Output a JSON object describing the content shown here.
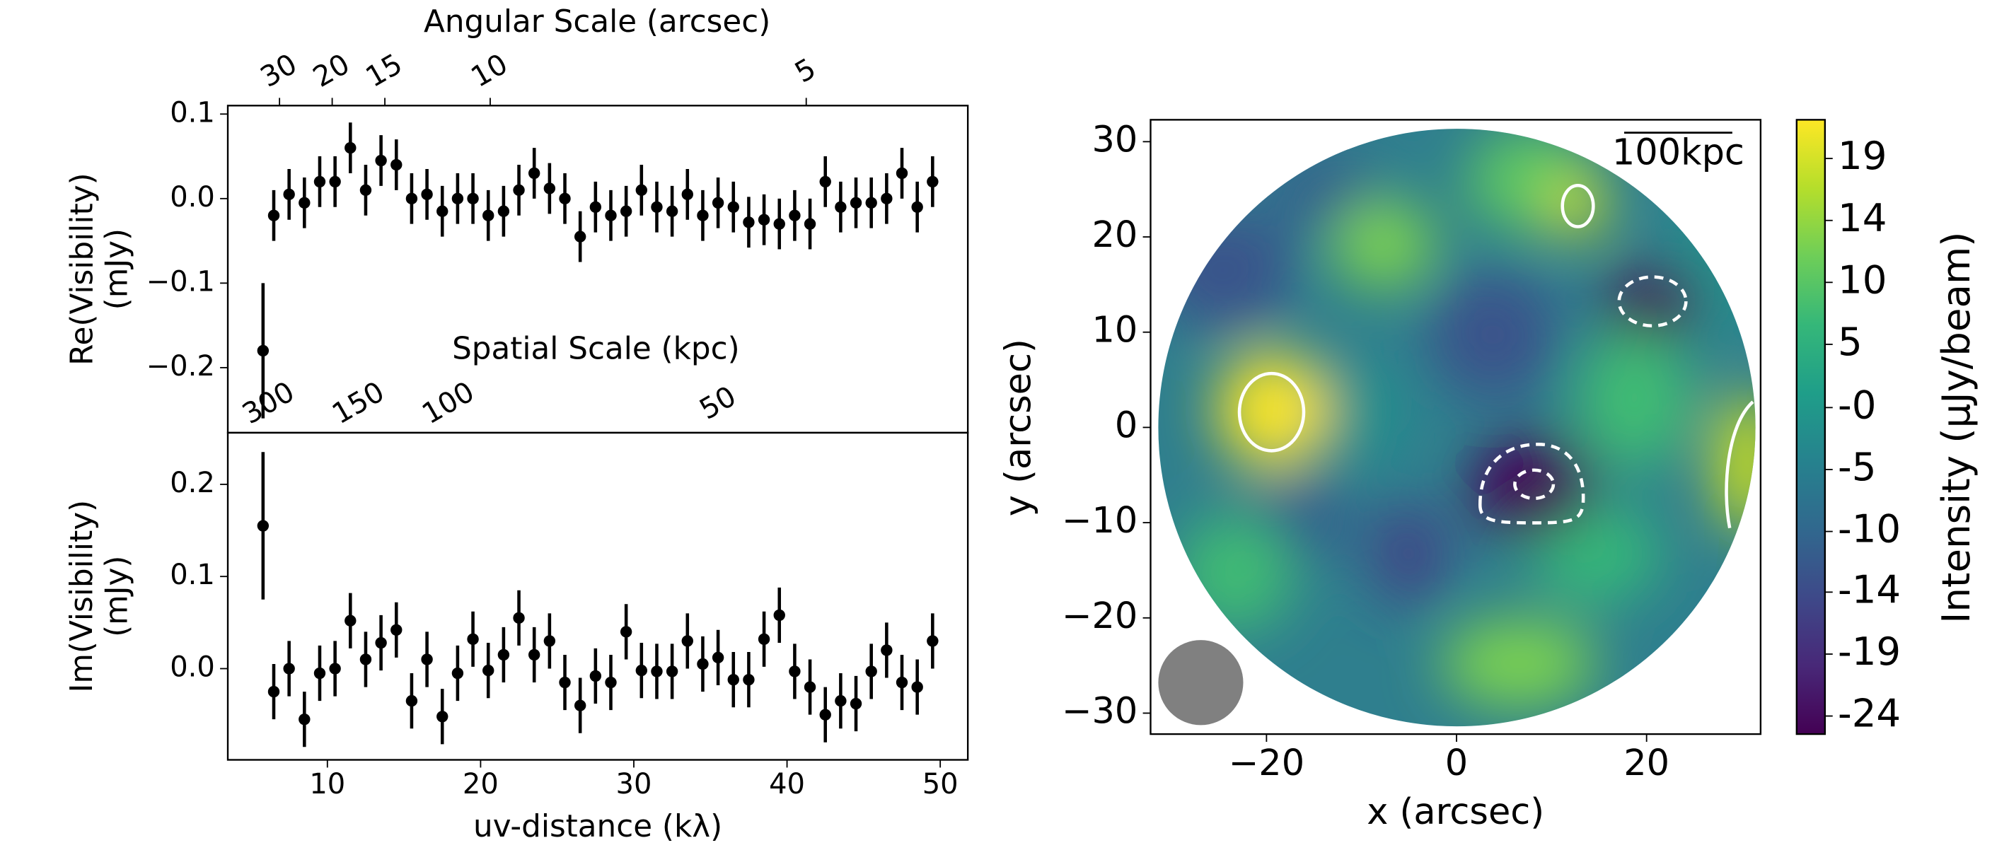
{
  "chart_data": [
    {
      "type": "errorbar",
      "x2label": "Angular Scale (arcsec)",
      "x3label": "Spatial Scale (kpc)",
      "ylabel": [
        "Re(Visibility)",
        "(mJy)"
      ],
      "color": "#000000",
      "x": [
        5.8,
        6.5,
        7.5,
        8.5,
        9.5,
        10.5,
        11.5,
        12.5,
        13.5,
        14.5,
        15.5,
        16.5,
        17.5,
        18.5,
        19.5,
        20.5,
        21.5,
        22.5,
        23.5,
        24.5,
        25.5,
        26.5,
        27.5,
        28.5,
        29.5,
        30.5,
        31.5,
        32.5,
        33.5,
        34.5,
        35.5,
        36.5,
        37.5,
        38.5,
        39.5,
        40.5,
        41.5,
        42.5,
        43.5,
        44.5,
        45.5,
        46.5,
        47.5,
        48.5,
        49.5
      ],
      "values": [
        -0.18,
        -0.02,
        0.005,
        -0.005,
        0.02,
        0.02,
        0.06,
        0.01,
        0.045,
        0.04,
        0.0,
        0.005,
        -0.015,
        0.0,
        0.0,
        -0.02,
        -0.015,
        0.01,
        0.03,
        0.012,
        0.0,
        -0.045,
        -0.01,
        -0.02,
        -0.015,
        0.01,
        -0.01,
        -0.015,
        0.005,
        -0.02,
        -0.005,
        -0.01,
        -0.028,
        -0.025,
        -0.03,
        -0.02,
        -0.03,
        0.02,
        -0.01,
        -0.005,
        -0.005,
        0.0,
        0.03,
        -0.01,
        0.02
      ],
      "errors": [
        0.08,
        0.03,
        0.03,
        0.03,
        0.03,
        0.03,
        0.03,
        0.03,
        0.03,
        0.03,
        0.03,
        0.03,
        0.03,
        0.03,
        0.03,
        0.03,
        0.03,
        0.03,
        0.03,
        0.03,
        0.03,
        0.03,
        0.03,
        0.03,
        0.03,
        0.03,
        0.03,
        0.03,
        0.03,
        0.03,
        0.03,
        0.03,
        0.03,
        0.03,
        0.03,
        0.03,
        0.03,
        0.03,
        0.03,
        0.03,
        0.03,
        0.03,
        0.03,
        0.03,
        0.03
      ],
      "xlim": [
        3.5,
        51.8
      ],
      "ylim": [
        -0.277,
        0.11
      ],
      "yticks": [
        {
          "value": -0.2,
          "label": "−0.2"
        },
        {
          "value": -0.1,
          "label": "−0.1"
        },
        {
          "value": 0,
          "label": "0.0"
        },
        0.1
      ],
      "x2ticks": [
        30,
        20,
        15,
        10,
        5
      ],
      "x3ticks": [
        300,
        150,
        100,
        50
      ]
    },
    {
      "type": "errorbar",
      "xlabel": "uv-distance (kλ)",
      "ylabel": [
        "Im(Visibility)",
        "(mJy)"
      ],
      "color": "#000000",
      "x": [
        5.8,
        6.5,
        7.5,
        8.5,
        9.5,
        10.5,
        11.5,
        12.5,
        13.5,
        14.5,
        15.5,
        16.5,
        17.5,
        18.5,
        19.5,
        20.5,
        21.5,
        22.5,
        23.5,
        24.5,
        25.5,
        26.5,
        27.5,
        28.5,
        29.5,
        30.5,
        31.5,
        32.5,
        33.5,
        34.5,
        35.5,
        36.5,
        37.5,
        38.5,
        39.5,
        40.5,
        41.5,
        42.5,
        43.5,
        44.5,
        45.5,
        46.5,
        47.5,
        48.5,
        49.5
      ],
      "values": [
        0.155,
        -0.025,
        0.0,
        -0.055,
        -0.005,
        0.0,
        0.052,
        0.01,
        0.028,
        0.042,
        -0.035,
        0.01,
        -0.052,
        -0.005,
        0.032,
        -0.002,
        0.015,
        0.055,
        0.015,
        0.03,
        -0.015,
        -0.04,
        -0.008,
        -0.015,
        0.04,
        -0.002,
        -0.003,
        -0.003,
        0.03,
        0.005,
        0.012,
        -0.012,
        -0.012,
        0.032,
        0.058,
        -0.003,
        -0.02,
        -0.05,
        -0.035,
        -0.038,
        -0.003,
        0.02,
        -0.015,
        -0.02,
        0.03
      ],
      "errors": [
        0.08,
        0.03,
        0.03,
        0.03,
        0.03,
        0.03,
        0.03,
        0.03,
        0.03,
        0.03,
        0.03,
        0.03,
        0.03,
        0.03,
        0.03,
        0.03,
        0.03,
        0.03,
        0.03,
        0.03,
        0.03,
        0.03,
        0.03,
        0.03,
        0.03,
        0.03,
        0.03,
        0.03,
        0.03,
        0.03,
        0.03,
        0.03,
        0.03,
        0.03,
        0.03,
        0.03,
        0.03,
        0.03,
        0.03,
        0.03,
        0.03,
        0.03,
        0.03,
        0.03,
        0.03
      ],
      "xlim": [
        3.5,
        51.8
      ],
      "ylim": [
        -0.099,
        0.256
      ],
      "xticks": [
        10,
        20,
        30,
        40,
        50
      ],
      "yticks": [
        {
          "value": 0,
          "label": "0.0"
        },
        0.1,
        0.2
      ]
    },
    {
      "type": "image",
      "xlabel": "x (arcsec)",
      "ylabel": "y (arcsec)",
      "annotation": "100kpc",
      "colormap": "viridis",
      "xlim": [
        -32.2,
        32
      ],
      "ylim": [
        -32.2,
        32.3
      ],
      "xticks": [
        {
          "value": -20,
          "label": "−20"
        },
        0,
        20
      ],
      "yticks": [
        {
          "value": -30,
          "label": "−30"
        },
        {
          "value": -20,
          "label": "−20"
        },
        {
          "value": -10,
          "label": "−10"
        },
        0,
        10,
        20,
        30
      ],
      "clabel": "Intensity (μJy/beam)",
      "clim": [
        -25.4,
        22.2
      ],
      "cticks": [
        {
          "value": 19.2,
          "label": "19"
        },
        {
          "value": 14.4,
          "label": "14"
        },
        {
          "value": 9.6,
          "label": "10"
        },
        {
          "value": 4.8,
          "label": "5"
        },
        {
          "value": -0.1,
          "label": "-0"
        },
        {
          "value": -4.9,
          "label": "-5"
        },
        {
          "value": -9.7,
          "label": "-10"
        },
        {
          "value": -14.4,
          "label": "-14"
        },
        {
          "value": -19.2,
          "label": "-19"
        },
        {
          "value": -24.0,
          "label": "-24"
        }
      ]
    }
  ]
}
